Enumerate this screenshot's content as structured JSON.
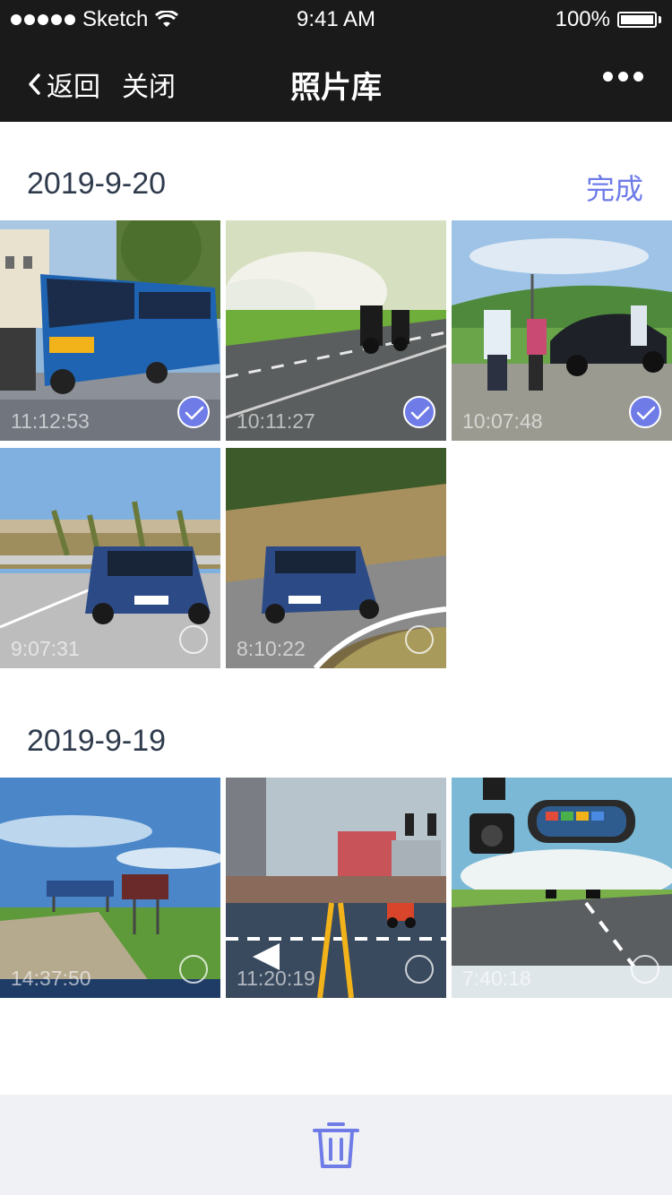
{
  "status_bar": {
    "carrier": "Sketch",
    "time": "9:41 AM",
    "battery": "100%"
  },
  "nav": {
    "back_label": "返回",
    "close_label": "关闭",
    "title": "照片库",
    "more_icon": "more-horizontal-icon"
  },
  "sections": [
    {
      "date": "2019-9-20",
      "action_label": "完成",
      "photos": [
        {
          "time": "11:12:53",
          "selected": true,
          "subject": "blue-bus"
        },
        {
          "time": "10:11:27",
          "selected": true,
          "subject": "motorcycles-on-road"
        },
        {
          "time": "10:07:48",
          "selected": true,
          "subject": "roadside-car-and-people"
        },
        {
          "time": "9:07:31",
          "selected": false,
          "subject": "blue-mini-on-road"
        },
        {
          "time": "8:10:22",
          "selected": false,
          "subject": "blue-mini-on-curve"
        }
      ]
    },
    {
      "date": "2019-9-19",
      "photos": [
        {
          "time": "14:37:50",
          "selected": false,
          "subject": "prairie-road-with-signs"
        },
        {
          "time": "11:20:19",
          "selected": false,
          "subject": "city-intersection"
        },
        {
          "time": "7:40:18",
          "selected": false,
          "subject": "dashcam-and-mirror"
        }
      ]
    }
  ],
  "toolbar": {
    "delete_icon": "trash-icon"
  },
  "colors": {
    "accent": "#6f7ce8",
    "navbar": "#1a1a1a",
    "toolbar": "#eff1f4",
    "date_text": "#2f3b4d"
  }
}
